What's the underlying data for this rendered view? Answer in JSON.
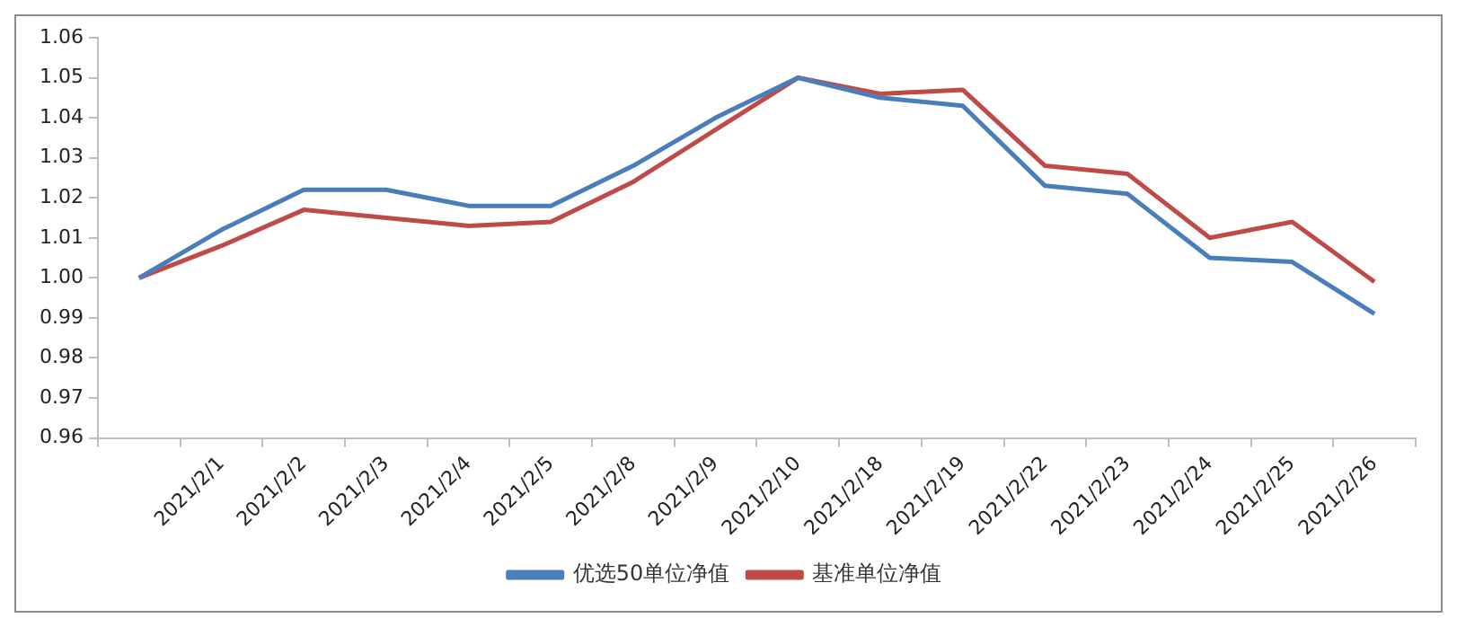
{
  "chart_data": {
    "type": "line",
    "categories": [
      null,
      "2021/2/1",
      "2021/2/2",
      "2021/2/3",
      "2021/2/4",
      "2021/2/5",
      "2021/2/8",
      "2021/2/9",
      "2021/2/10",
      "2021/2/18",
      "2021/2/19",
      "2021/2/22",
      "2021/2/23",
      "2021/2/24",
      "2021/2/25",
      "2021/2/26"
    ],
    "series": [
      {
        "name": "优选50单位净值",
        "color": "#4a7ebb",
        "values": [
          1.0,
          1.012,
          1.022,
          1.022,
          1.018,
          1.018,
          1.028,
          1.04,
          1.05,
          1.045,
          1.043,
          1.023,
          1.021,
          1.005,
          1.004,
          0.991
        ]
      },
      {
        "name": "基准单位净值",
        "color": "#be4b48",
        "values": [
          1.0,
          1.008,
          1.017,
          1.015,
          1.013,
          1.014,
          1.024,
          1.037,
          1.05,
          1.046,
          1.047,
          1.028,
          1.026,
          1.01,
          1.014,
          0.999
        ]
      }
    ],
    "ylim": [
      0.96,
      1.06
    ],
    "yticks": [
      0.96,
      0.97,
      0.98,
      0.99,
      {
        "value": 1,
        "label": "1.00"
      },
      1.01,
      1.02,
      1.03,
      1.04,
      1.05,
      1.06
    ],
    "grid": false,
    "legend": "bottom",
    "marker": "none",
    "line_style": "solid"
  }
}
